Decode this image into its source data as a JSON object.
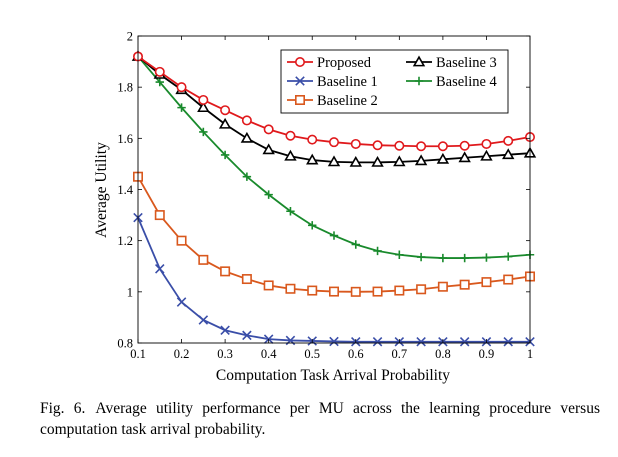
{
  "chart_data": {
    "type": "line",
    "xlabel": "Computation Task Arrival Probability",
    "ylabel": "Average Utility",
    "xlim": [
      0.1,
      1.0
    ],
    "ylim": [
      0.8,
      2.0
    ],
    "xticks": [
      "0.1",
      "0.2",
      "0.3",
      "0.4",
      "0.5",
      "0.6",
      "0.7",
      "0.8",
      "0.9",
      "1"
    ],
    "yticks": [
      "0.8",
      "1",
      "1.2",
      "1.4",
      "1.6",
      "1.8",
      "2"
    ],
    "grid": false,
    "legend": "top-right",
    "x": [
      0.1,
      0.15,
      0.2,
      0.25,
      0.3,
      0.35,
      0.4,
      0.45,
      0.5,
      0.55,
      0.6,
      0.65,
      0.7,
      0.75,
      0.8,
      0.85,
      0.9,
      0.95,
      1.0
    ],
    "series": [
      {
        "name": "Proposed",
        "color": "#e0191c",
        "marker": "circle",
        "values": [
          1.92,
          1.86,
          1.8,
          1.75,
          1.71,
          1.67,
          1.635,
          1.61,
          1.595,
          1.585,
          1.578,
          1.573,
          1.571,
          1.569,
          1.569,
          1.571,
          1.578,
          1.59,
          1.605
        ]
      },
      {
        "name": "Baseline 1",
        "color": "#3a4ea8",
        "marker": "x",
        "values": [
          1.29,
          1.09,
          0.96,
          0.89,
          0.85,
          0.83,
          0.815,
          0.81,
          0.808,
          0.806,
          0.805,
          0.805,
          0.805,
          0.805,
          0.805,
          0.805,
          0.805,
          0.805,
          0.805
        ]
      },
      {
        "name": "Baseline 2",
        "color": "#d9581d",
        "marker": "square",
        "values": [
          1.45,
          1.3,
          1.2,
          1.125,
          1.08,
          1.05,
          1.025,
          1.012,
          1.005,
          1.001,
          1.0,
          1.001,
          1.005,
          1.01,
          1.02,
          1.028,
          1.038,
          1.048,
          1.06
        ]
      },
      {
        "name": "Baseline 3",
        "color": "#000000",
        "marker": "triangle",
        "values": [
          1.92,
          1.85,
          1.79,
          1.72,
          1.655,
          1.6,
          1.555,
          1.53,
          1.515,
          1.508,
          1.506,
          1.506,
          1.508,
          1.512,
          1.518,
          1.524,
          1.53,
          1.536,
          1.542
        ]
      },
      {
        "name": "Baseline 4",
        "color": "#198a2c",
        "marker": "plus",
        "values": [
          1.92,
          1.82,
          1.72,
          1.625,
          1.535,
          1.45,
          1.38,
          1.315,
          1.26,
          1.22,
          1.185,
          1.16,
          1.145,
          1.136,
          1.132,
          1.132,
          1.134,
          1.138,
          1.145
        ]
      }
    ]
  },
  "caption": {
    "label": "Fig. 6.",
    "text": "Average utility performance per MU across the learning procedure versus computation task arrival probability."
  }
}
